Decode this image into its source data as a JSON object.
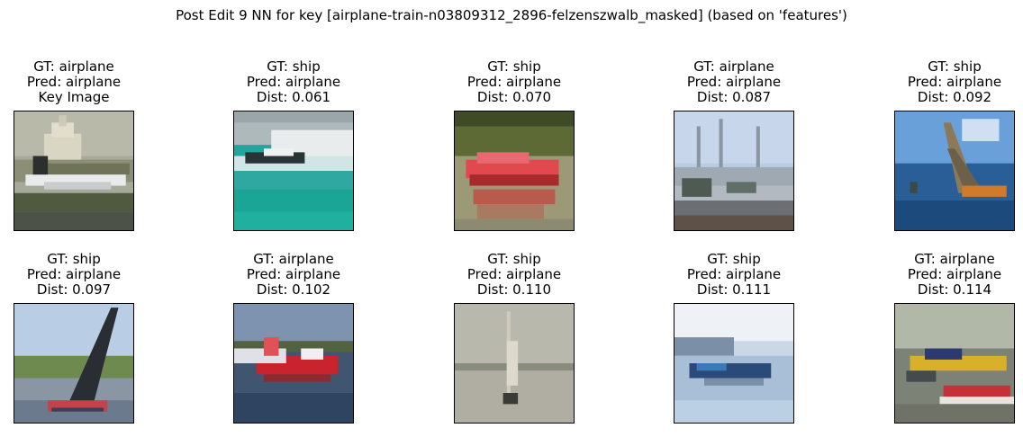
{
  "figure": {
    "suptitle": "Post Edit 9 NN for key [airplane-train-n03809312_2896-felzenszwalb_masked] (based on 'features')"
  },
  "panels": [
    {
      "gt": "GT: airplane",
      "pred": "Pred: airplane",
      "extra": "Key Image",
      "scene": "capitol-airplane"
    },
    {
      "gt": "GT: ship",
      "pred": "Pred: airplane",
      "extra": "Dist: 0.061",
      "scene": "speedboat-wave"
    },
    {
      "gt": "GT: ship",
      "pred": "Pred: airplane",
      "extra": "Dist: 0.070",
      "scene": "red-boat-reflection"
    },
    {
      "gt": "GT: airplane",
      "pred": "Pred: airplane",
      "extra": "Dist: 0.087",
      "scene": "harbor-structures"
    },
    {
      "gt": "GT: ship",
      "pred": "Pred: airplane",
      "extra": "Dist: 0.092",
      "scene": "sail-splash"
    },
    {
      "gt": "GT: ship",
      "pred": "Pred: airplane",
      "extra": "Dist: 0.097",
      "scene": "dark-sailboat"
    },
    {
      "gt": "GT: airplane",
      "pred": "Pred: airplane",
      "extra": "Dist: 0.102",
      "scene": "red-seaplane"
    },
    {
      "gt": "GT: ship",
      "pred": "Pred: airplane",
      "extra": "Dist: 0.110",
      "scene": "foggy-sailboat"
    },
    {
      "gt": "GT: ship",
      "pred": "Pred: airplane",
      "extra": "Dist: 0.111",
      "scene": "lake-boat"
    },
    {
      "gt": "GT: airplane",
      "pred": "Pred: airplane",
      "extra": "Dist: 0.114",
      "scene": "yellow-seaplane"
    }
  ]
}
